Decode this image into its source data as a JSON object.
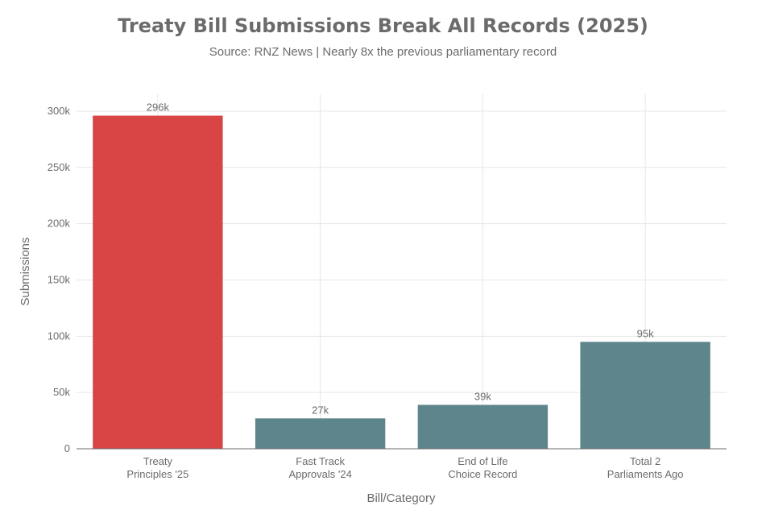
{
  "chart_data": {
    "type": "bar",
    "title": "Treaty Bill Submissions Break All Records (2025)",
    "subtitle": "Source: RNZ News | Nearly 8x the previous parliamentary record",
    "xlabel": "Bill/Category",
    "ylabel": "Submissions",
    "categories": [
      [
        "Treaty",
        "Principles '25"
      ],
      [
        "Fast Track",
        "Approvals '24"
      ],
      [
        "End of Life",
        "Choice Record"
      ],
      [
        "Total 2",
        "Parliaments Ago"
      ]
    ],
    "values": [
      296000,
      27000,
      39000,
      95000
    ],
    "data_labels": [
      "296k",
      "27k",
      "39k",
      "95k"
    ],
    "bar_colors": [
      "#d94545",
      "#5f858c",
      "#5f858c",
      "#5f858c"
    ],
    "ylim": [
      0,
      315000
    ],
    "yticks": [
      0,
      50000,
      100000,
      150000,
      200000,
      250000,
      300000
    ],
    "ytick_labels": [
      "0",
      "50k",
      "100k",
      "150k",
      "200k",
      "250k",
      "300k"
    ],
    "grid": true,
    "legend": "none"
  }
}
